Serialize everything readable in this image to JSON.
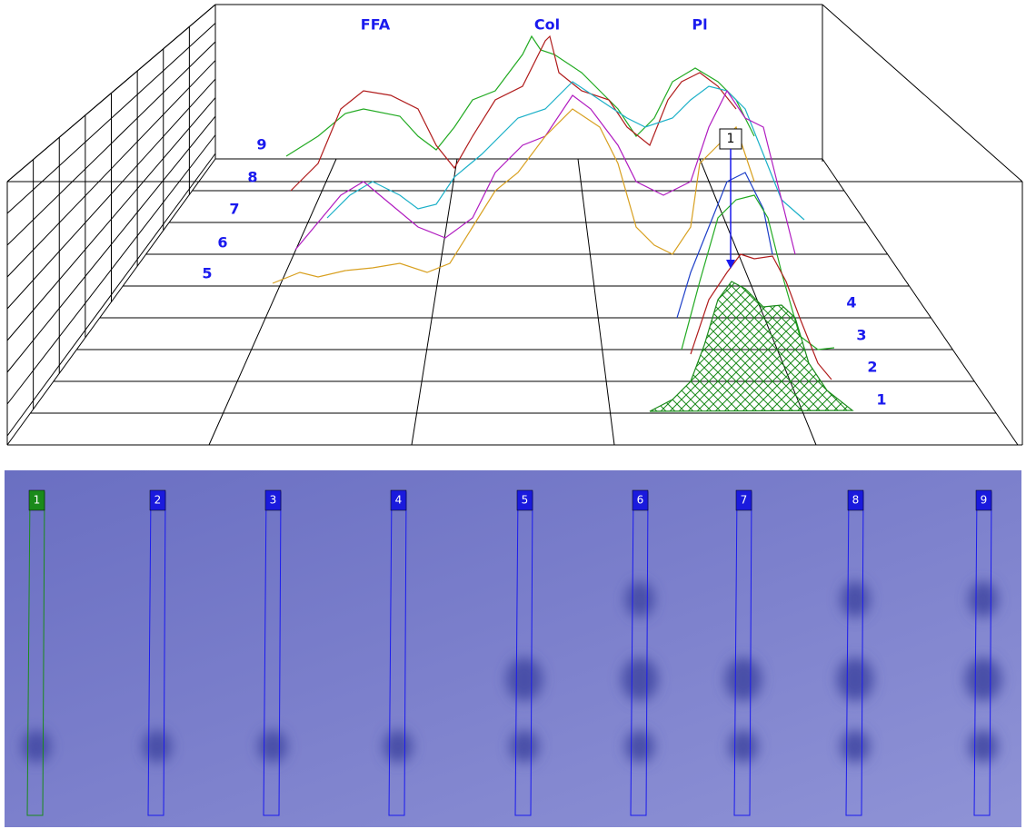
{
  "profile_view": {
    "peak_labels": [
      "FFA",
      "Col",
      "Pl"
    ],
    "lane_labels": [
      "1",
      "2",
      "3",
      "4",
      "5",
      "6",
      "7",
      "8",
      "9"
    ],
    "marker": "1"
  },
  "plate": {
    "lanes": [
      "1",
      "2",
      "3",
      "4",
      "5",
      "6",
      "7",
      "8",
      "9"
    ]
  }
}
